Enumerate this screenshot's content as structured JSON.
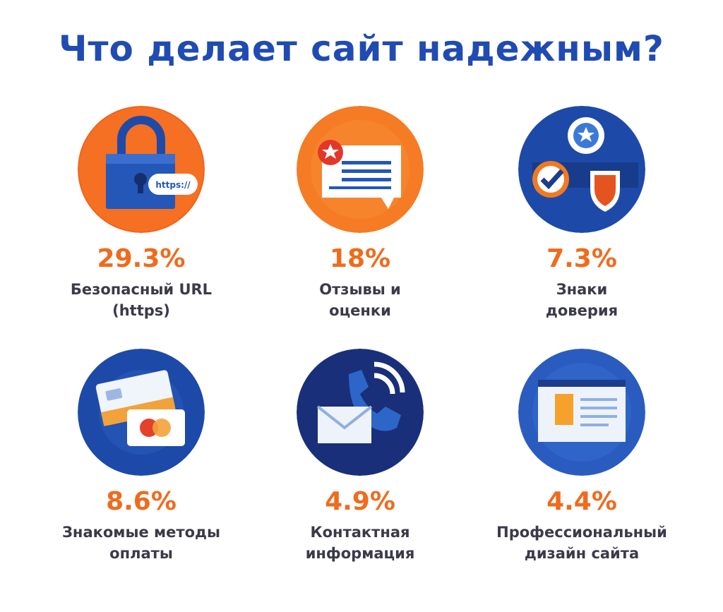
{
  "title": "Что делает сайт надежным?",
  "colors": {
    "title": "#1f4bb3",
    "percent": "#ef6b1d",
    "label": "#3a3a4a"
  },
  "items": [
    {
      "percent": "29.3%",
      "label_line1": "Безопасный URL",
      "label_line2": "(https)",
      "icon": "padlock-https-icon",
      "icon_text": "https://"
    },
    {
      "percent": "18%",
      "label_line1": "Отзывы и",
      "label_line2": "оценки",
      "icon": "review-message-icon"
    },
    {
      "percent": "7.3%",
      "label_line1": "Знаки",
      "label_line2": "доверия",
      "icon": "trust-badges-icon"
    },
    {
      "percent": "8.6%",
      "label_line1": "Знакомые методы",
      "label_line2": "оплаты",
      "icon": "payment-cards-icon"
    },
    {
      "percent": "4.9%",
      "label_line1": "Контактная",
      "label_line2": "информация",
      "icon": "phone-mail-icon"
    },
    {
      "percent": "4.4%",
      "label_line1": "Профессиональный",
      "label_line2": "дизайн сайта",
      "icon": "web-design-icon"
    }
  ]
}
